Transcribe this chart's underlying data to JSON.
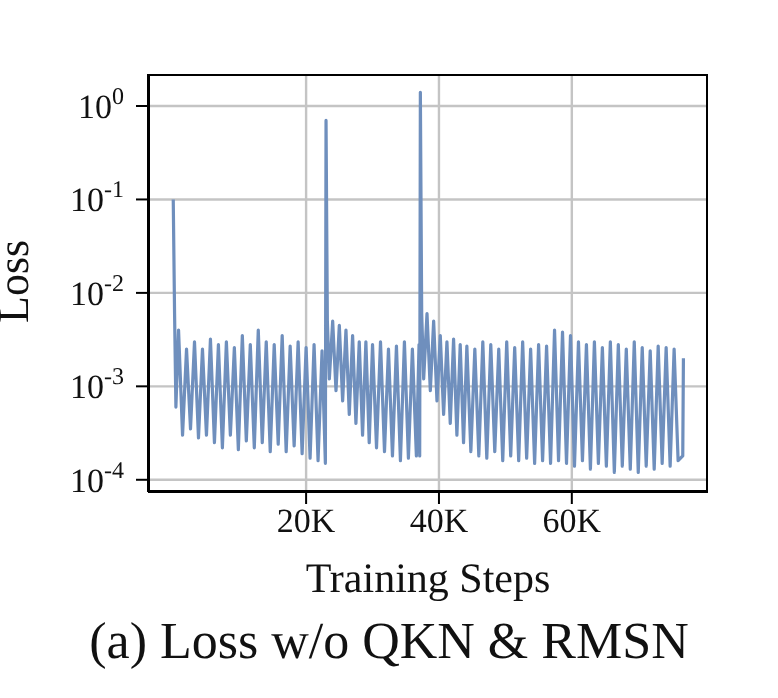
{
  "chart_data": {
    "type": "line",
    "xlabel": "Training Steps",
    "ylabel": "Loss",
    "annotations": [
      "(a) Loss w/o QKN & RMSN"
    ],
    "log": "y",
    "grid": true,
    "marker": "none",
    "line_style": "solid",
    "xlim": [
      -3800,
      80500
    ],
    "xticks": [
      {
        "value": 20000,
        "label": "20K"
      },
      {
        "value": 40000,
        "label": "40K"
      },
      {
        "value": 60000,
        "label": "60K"
      }
    ],
    "ylim": [
      7.4e-05,
      2.2
    ],
    "yticks": [
      {
        "value": 0.0001,
        "label": "10$^{-4}$"
      },
      {
        "value": 0.001,
        "label": "10$^{-3}$"
      },
      {
        "value": 0.01,
        "label": "10$^{-2}$"
      },
      {
        "value": 0.1,
        "label": "10$^{-1}$"
      },
      {
        "value": 1,
        "label": "10$^{0}$"
      }
    ],
    "x": [
      0,
      200,
      400,
      800,
      1400,
      2000,
      2600,
      3200,
      3800,
      4400,
      5000,
      5600,
      6200,
      6800,
      7400,
      8000,
      8600,
      9200,
      9800,
      10400,
      11000,
      11600,
      12200,
      12800,
      13400,
      14000,
      14600,
      15200,
      15800,
      16400,
      17000,
      17600,
      18200,
      18800,
      19400,
      20000,
      20600,
      21200,
      21800,
      22400,
      22900,
      23000,
      23200,
      23500,
      24000,
      24500,
      25000,
      25500,
      26000,
      26500,
      27000,
      27500,
      28000,
      28500,
      29000,
      29500,
      30000,
      30600,
      31200,
      31800,
      32400,
      33000,
      33600,
      34200,
      34800,
      35400,
      36000,
      36600,
      37000,
      37100,
      37200,
      37400,
      37700,
      38200,
      38700,
      39200,
      39700,
      40200,
      40700,
      41200,
      41700,
      42200,
      42700,
      43200,
      43700,
      44200,
      44800,
      45400,
      46000,
      46600,
      47200,
      47800,
      48400,
      49000,
      49600,
      50200,
      50800,
      51400,
      52000,
      52600,
      53200,
      53800,
      54400,
      55000,
      55600,
      56200,
      56800,
      57400,
      58000,
      58600,
      59200,
      59800,
      60400,
      61000,
      61600,
      62200,
      62800,
      63400,
      64000,
      64600,
      65200,
      65800,
      66400,
      67000,
      67600,
      68200,
      68800,
      69400,
      70000,
      70600,
      71200,
      71800,
      72400,
      73000,
      73600,
      74200,
      74800,
      75400,
      76000,
      76700,
      76800
    ],
    "series": [
      {
        "color": "#6f8fbd",
        "values": [
          0.1,
          0.006,
          0.0006,
          0.004,
          0.0003,
          0.0025,
          0.00035,
          0.003,
          0.00028,
          0.0025,
          0.0003,
          0.0032,
          0.00025,
          0.0028,
          0.00022,
          0.003,
          0.0003,
          0.0026,
          0.00021,
          0.0035,
          0.00026,
          0.0028,
          0.00022,
          0.004,
          0.00025,
          0.003,
          0.0002,
          0.0028,
          0.00024,
          0.0035,
          0.0002,
          0.0027,
          0.00023,
          0.003,
          0.00019,
          0.0026,
          0.00017,
          0.0028,
          0.00016,
          0.0024,
          0.00015,
          0.7,
          0.005,
          0.0012,
          0.005,
          0.0009,
          0.0045,
          0.0007,
          0.004,
          0.0005,
          0.0035,
          0.0004,
          0.003,
          0.0003,
          0.003,
          0.00025,
          0.0028,
          0.00022,
          0.003,
          0.0002,
          0.0025,
          0.00018,
          0.0027,
          0.00016,
          0.003,
          0.00017,
          0.0025,
          0.00018,
          0.0028,
          0.00018,
          1.4,
          0.006,
          0.0012,
          0.006,
          0.0009,
          0.005,
          0.0007,
          0.0035,
          0.0005,
          0.003,
          0.0004,
          0.0032,
          0.0003,
          0.0028,
          0.00025,
          0.0027,
          0.0002,
          0.0025,
          0.00018,
          0.003,
          0.00017,
          0.0028,
          0.0002,
          0.0025,
          0.00016,
          0.003,
          0.00018,
          0.0026,
          0.00016,
          0.003,
          0.00017,
          0.0025,
          0.00015,
          0.0028,
          0.00016,
          0.0027,
          0.00015,
          0.004,
          0.00016,
          0.0038,
          0.00015,
          0.0035,
          0.00014,
          0.003,
          0.00016,
          0.0028,
          0.00013,
          0.003,
          0.00015,
          0.0026,
          0.00014,
          0.003,
          0.00012,
          0.0028,
          0.00014,
          0.0025,
          0.00013,
          0.003,
          0.00012,
          0.0026,
          0.00014,
          0.0024,
          0.00013,
          0.0027,
          0.00015,
          0.0026,
          0.00014,
          0.0025,
          0.00016,
          0.00018,
          0.002
        ]
      }
    ]
  }
}
